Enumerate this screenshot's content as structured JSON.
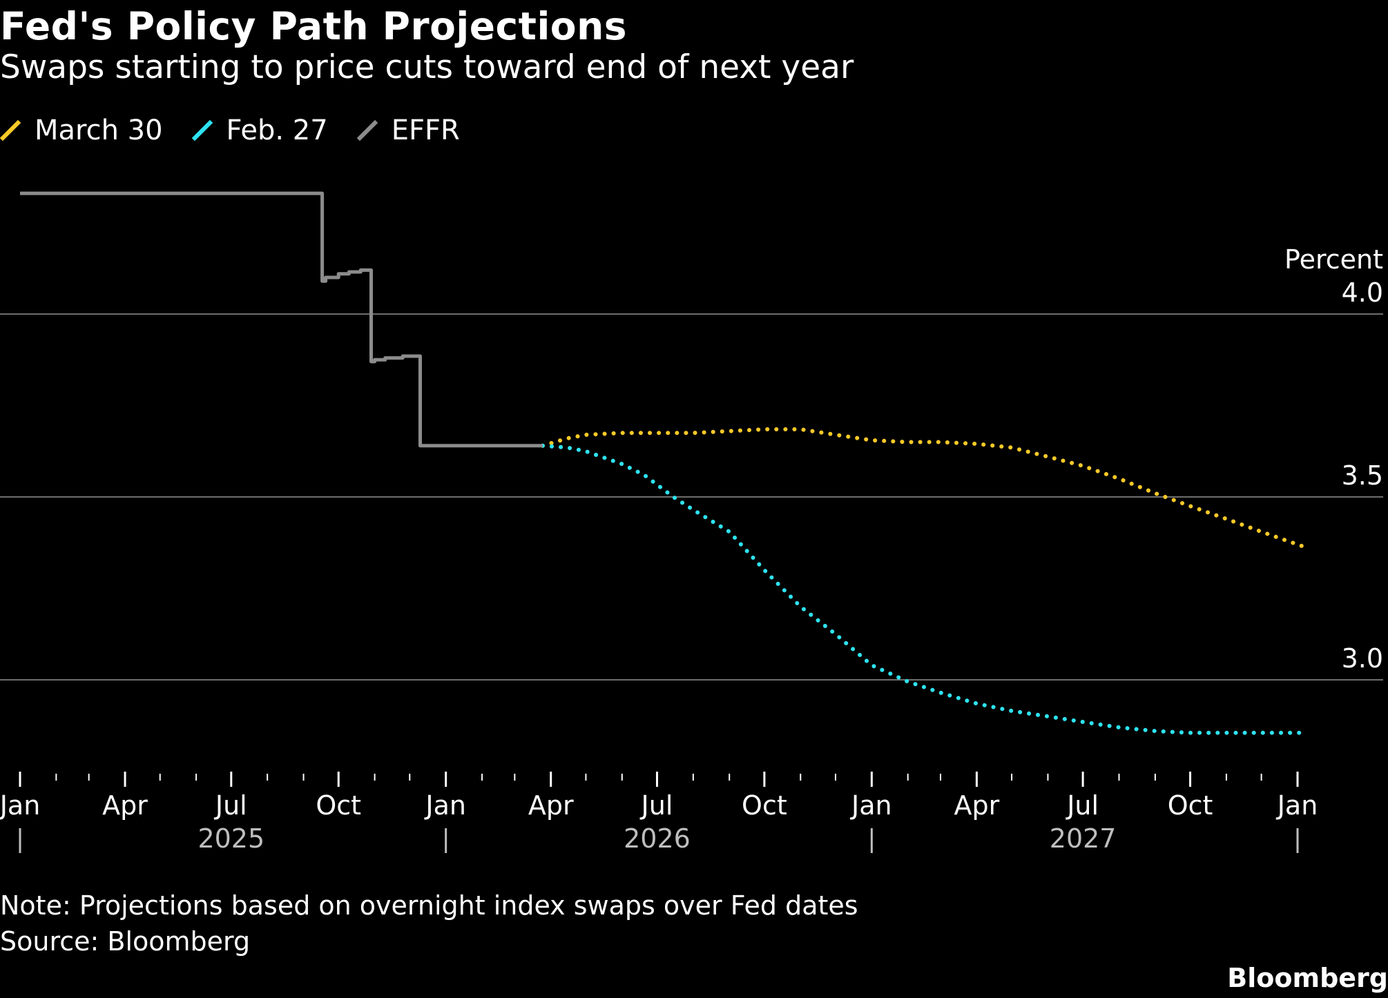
{
  "title": "Fed's Policy Path Projections",
  "subtitle": "Swaps starting to price cuts toward end of next year",
  "note": "Note: Projections based on overnight index swaps over Fed dates",
  "source": "Source: Bloomberg",
  "brand": "Bloomberg",
  "colors": {
    "background": "#000000",
    "march30": "#F7C928",
    "feb27": "#2EE3F0",
    "effr": "#8C8C8C",
    "grid": "#6E6E6E",
    "text": "#FFFFFF",
    "year_text": "#BEBEBE"
  },
  "chart_data": {
    "type": "line",
    "title": "Fed's Policy Path Projections",
    "subtitle": "Swaps starting to price cuts toward end of next year",
    "ylabel": "Percent",
    "ylim": [
      2.75,
      4.45
    ],
    "y_ticks": [
      3.0,
      3.5,
      4.0
    ],
    "y_tick_labels": [
      "3.0",
      "3.5",
      "4.0"
    ],
    "xlim": [
      "2025-01-01",
      "2028-01-20"
    ],
    "x_ticks": [
      {
        "date": "2025-01-01",
        "label": "Jan"
      },
      {
        "date": "2025-04-01",
        "label": "Apr"
      },
      {
        "date": "2025-07-01",
        "label": "Jul"
      },
      {
        "date": "2025-10-01",
        "label": "Oct"
      },
      {
        "date": "2026-01-01",
        "label": "Jan"
      },
      {
        "date": "2026-04-01",
        "label": "Apr"
      },
      {
        "date": "2026-07-01",
        "label": "Jul"
      },
      {
        "date": "2026-10-01",
        "label": "Oct"
      },
      {
        "date": "2027-01-01",
        "label": "Jan"
      },
      {
        "date": "2027-04-01",
        "label": "Apr"
      },
      {
        "date": "2027-07-01",
        "label": "Jul"
      },
      {
        "date": "2027-10-01",
        "label": "Oct"
      },
      {
        "date": "2028-01-01",
        "label": "Jan"
      }
    ],
    "years": [
      {
        "label": "2025",
        "center": "2025-07-01"
      },
      {
        "label": "2026",
        "center": "2026-07-01"
      },
      {
        "label": "2027",
        "center": "2027-07-01"
      }
    ],
    "year_separators": [
      "2025-01-01",
      "2026-01-01",
      "2027-01-01",
      "2028-01-01"
    ],
    "grid": true,
    "legend_position": "top-left",
    "series": [
      {
        "name": "March 30",
        "key": "march30",
        "style": "dotted",
        "x": [
          "2026-03-25",
          "2026-04-15",
          "2026-05-01",
          "2026-06-01",
          "2026-07-01",
          "2026-08-01",
          "2026-09-01",
          "2026-10-01",
          "2026-11-01",
          "2026-12-01",
          "2027-01-01",
          "2027-02-01",
          "2027-03-01",
          "2027-04-01",
          "2027-05-01",
          "2027-06-01",
          "2027-07-01",
          "2027-08-01",
          "2027-09-01",
          "2027-10-01",
          "2027-11-01",
          "2027-12-01",
          "2028-01-10"
        ],
        "values": [
          3.64,
          3.66,
          3.67,
          3.675,
          3.675,
          3.675,
          3.68,
          3.685,
          3.685,
          3.67,
          3.655,
          3.65,
          3.65,
          3.645,
          3.635,
          3.61,
          3.585,
          3.55,
          3.51,
          3.475,
          3.44,
          3.405,
          3.36
        ]
      },
      {
        "name": "Feb. 27",
        "key": "feb27",
        "style": "dotted",
        "x": [
          "2026-03-25",
          "2026-04-15",
          "2026-05-01",
          "2026-06-01",
          "2026-06-20",
          "2026-07-15",
          "2026-08-01",
          "2026-09-01",
          "2026-10-01",
          "2026-11-01",
          "2026-12-01",
          "2027-01-01",
          "2027-02-01",
          "2027-03-01",
          "2027-04-01",
          "2027-05-01",
          "2027-06-01",
          "2027-07-01",
          "2027-08-01",
          "2027-09-01",
          "2027-10-01",
          "2027-11-01",
          "2027-12-01",
          "2028-01-10"
        ],
        "values": [
          3.64,
          3.635,
          3.625,
          3.59,
          3.56,
          3.5,
          3.465,
          3.405,
          3.3,
          3.2,
          3.125,
          3.04,
          2.995,
          2.965,
          2.935,
          2.915,
          2.9,
          2.885,
          2.87,
          2.86,
          2.855,
          2.855,
          2.855,
          2.855
        ]
      },
      {
        "name": "EFFR",
        "key": "effr",
        "style": "solid",
        "step": true,
        "x": [
          "2025-01-01",
          "2025-09-17",
          "2025-09-20",
          "2025-10-01",
          "2025-10-10",
          "2025-10-20",
          "2025-10-29",
          "2025-11-01",
          "2025-11-10",
          "2025-11-25",
          "2025-12-10",
          "2026-03-25"
        ],
        "values": [
          4.33,
          4.09,
          4.1,
          4.11,
          4.115,
          4.12,
          3.87,
          3.875,
          3.88,
          3.885,
          3.64,
          3.64
        ]
      }
    ]
  }
}
